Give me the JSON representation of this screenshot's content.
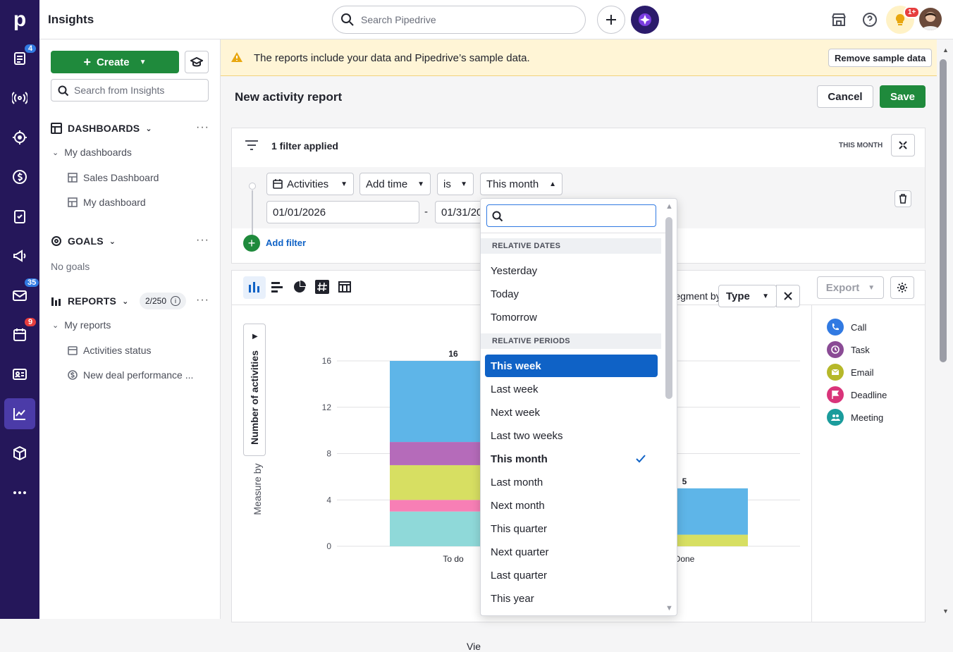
{
  "app": {
    "title": "Insights",
    "logo": "p"
  },
  "rail": {
    "badges": {
      "leads": "4",
      "mail": "35",
      "calendar": "9"
    }
  },
  "topbar": {
    "search_placeholder": "Search Pipedrive",
    "notif_badge": "1+"
  },
  "sidebar": {
    "create_label": "Create",
    "search_placeholder": "Search from Insights",
    "dashboards": {
      "title": "DASHBOARDS",
      "group": "My dashboards",
      "items": [
        "Sales Dashboard",
        "My dashboard"
      ]
    },
    "goals": {
      "title": "GOALS",
      "empty": "No goals"
    },
    "reports": {
      "title": "REPORTS",
      "count": "2/250",
      "group": "My reports",
      "items": [
        "Activities status",
        "New deal performance ..."
      ]
    }
  },
  "banner": {
    "text": "The reports include your data and Pipedrive’s sample data.",
    "button": "Remove sample data"
  },
  "report": {
    "title": "New activity report",
    "cancel": "Cancel",
    "save": "Save"
  },
  "filters": {
    "applied": "1 filter applied",
    "period_tag": "THIS MONTH",
    "entity": "Activities",
    "field": "Add time",
    "operator": "is",
    "value": "This month",
    "from_date": "01/01/2026",
    "dash": "-",
    "to_date": "01/31/2026",
    "add_filter": "Add filter"
  },
  "toolbar": {
    "export": "Export",
    "segment_label": "Segment by",
    "segment_value": "Type"
  },
  "chart_data": {
    "type": "bar",
    "stacked": true,
    "categories": [
      "To do",
      "Done"
    ],
    "series": [
      {
        "name": "Call",
        "values": [
          3,
          0
        ],
        "color": "#8fd9d9"
      },
      {
        "name": "Deadline",
        "values": [
          1,
          0
        ],
        "color": "#f77fb5"
      },
      {
        "name": "Email",
        "values": [
          3,
          1
        ],
        "color": "#d7df62"
      },
      {
        "name": "Task",
        "values": [
          2,
          0
        ],
        "color": "#b56bba"
      },
      {
        "name": "Meeting",
        "values": [
          7,
          4
        ],
        "color": "#5eb5e8"
      }
    ],
    "totals": [
      16,
      5
    ],
    "ylabel": "Number of activities",
    "measure_label": "Measure by",
    "xlabel_fragment": "Vie",
    "yticks": [
      "0",
      "4",
      "8",
      "12",
      "16"
    ],
    "ylim": [
      0,
      16
    ]
  },
  "legend": [
    {
      "label": "Call",
      "color": "#317ae2",
      "icon": "phone-icon"
    },
    {
      "label": "Task",
      "color": "#8a4b95",
      "icon": "clock-icon"
    },
    {
      "label": "Email",
      "color": "#b6b82a",
      "icon": "envelope-icon"
    },
    {
      "label": "Deadline",
      "color": "#d9347a",
      "icon": "flag-icon"
    },
    {
      "label": "Meeting",
      "color": "#1b9c9c",
      "icon": "people-icon"
    }
  ],
  "dropdown": {
    "groups": [
      "RELATIVE DATES",
      "RELATIVE PERIODS"
    ],
    "dates": [
      "Yesterday",
      "Today",
      "Tomorrow"
    ],
    "periods": [
      "This week",
      "Last week",
      "Next week",
      "Last two weeks",
      "This month",
      "Last month",
      "Next month",
      "This quarter",
      "Next quarter",
      "Last quarter",
      "This year"
    ],
    "highlighted": "This week",
    "selected": "This month"
  },
  "colors": {
    "rail": "#25175a",
    "primary_green": "#1f8a3c",
    "link": "#0f62c6",
    "banner": "#fff5d6"
  }
}
